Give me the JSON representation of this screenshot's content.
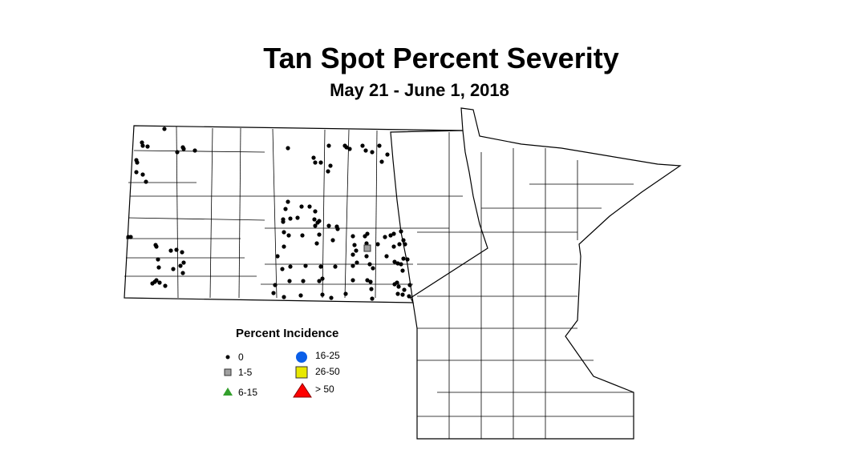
{
  "title": "Tan Spot Percent Severity",
  "subtitle": "May 21 - June 1, 2018",
  "legend": {
    "title": "Percent Incidence",
    "items": [
      {
        "label": "0",
        "symbol": "dot",
        "color": "#000000"
      },
      {
        "label": "1-5",
        "symbol": "square",
        "color": "#a0a0a0"
      },
      {
        "label": "6-15",
        "symbol": "triangle",
        "color": "#33a02c"
      },
      {
        "label": "16-25",
        "symbol": "circle",
        "color": "#0a5ee8"
      },
      {
        "label": "26-50",
        "symbol": "square",
        "color": "#e8e800"
      },
      {
        "label": "> 50",
        "symbol": "triangle",
        "color": "#ff0000"
      }
    ]
  },
  "map": {
    "regions": [
      "North Dakota",
      "Minnesota"
    ],
    "observations": {
      "category_0_count": 140,
      "category_1_5_count": 1
    }
  }
}
